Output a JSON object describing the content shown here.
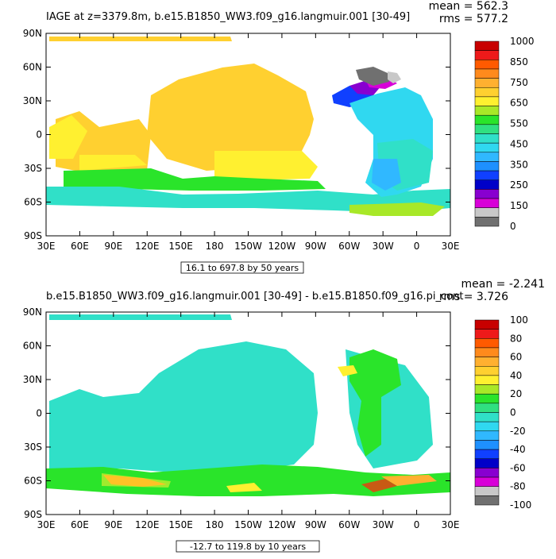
{
  "chart_data": [
    {
      "type": "heatmap",
      "title": "IAGE at z=3379.8m, b.e15.B1850_WW3.f09_g16.langmuir.001 [30-49]",
      "stats": {
        "mean": "mean = 562.3",
        "rms": "rms = 577.2"
      },
      "xticks": [
        "30E",
        "60E",
        "90E",
        "120E",
        "150E",
        "180",
        "150W",
        "120W",
        "90W",
        "60W",
        "30W",
        "0",
        "30E"
      ],
      "yticks": [
        "90N",
        "60N",
        "30N",
        "0",
        "30S",
        "60S",
        "90S"
      ],
      "xlim": [
        30,
        390
      ],
      "ylim": [
        -90,
        90
      ],
      "range_note": "16.1 to 697.8 by 50 years",
      "colorbar": {
        "labels": [
          "1000",
          "850",
          "750",
          "650",
          "550",
          "450",
          "350",
          "250",
          "150",
          "0"
        ],
        "colors": [
          "#c80000",
          "#ee1a1a",
          "#ff5a00",
          "#ff8a1c",
          "#ffb030",
          "#ffd030",
          "#fff030",
          "#a8e828",
          "#2ae42a",
          "#30e080",
          "#30e0c8",
          "#30d8f0",
          "#30b8ff",
          "#1e90ff",
          "#1040ff",
          "#0000c8",
          "#8800d0",
          "#d800d8",
          "#c8c8c8",
          "#707070"
        ]
      },
      "regions": [
        {
          "name": "pacific-central",
          "value": 650,
          "color": "#ffd030"
        },
        {
          "name": "pacific-south-band",
          "value": 700,
          "color": "#fff030"
        },
        {
          "name": "atlantic-north",
          "value": 450,
          "color": "#30d8f0"
        },
        {
          "name": "southern-ocean",
          "value": 450,
          "color": "#30e0c8"
        },
        {
          "name": "arctic-grey",
          "value": 50,
          "color": "#707070"
        }
      ]
    },
    {
      "type": "heatmap",
      "title": "b.e15.B1850_WW3.f09_g16.langmuir.001 [30-49] - b.e15.B1850.f09_g16.pi_cont",
      "stats": {
        "mean": "mean = -2.241",
        "rms": "rms = 3.726"
      },
      "xticks": [
        "30E",
        "60E",
        "90E",
        "120E",
        "150E",
        "180",
        "150W",
        "120W",
        "90W",
        "60W",
        "30W",
        "0",
        "30E"
      ],
      "yticks": [
        "90N",
        "60N",
        "30N",
        "0",
        "30S",
        "60S",
        "90S"
      ],
      "xlim": [
        30,
        390
      ],
      "ylim": [
        -90,
        90
      ],
      "range_note": "-12.7 to 119.8 by 10 years",
      "colorbar": {
        "labels": [
          "100",
          "80",
          "60",
          "40",
          "20",
          "0",
          "-20",
          "-40",
          "-60",
          "-80",
          "-100"
        ],
        "colors": [
          "#c80000",
          "#ee1a1a",
          "#ff5a00",
          "#ff8a1c",
          "#ffb030",
          "#ffd030",
          "#fff030",
          "#a8e828",
          "#2ae42a",
          "#30e080",
          "#30e0c8",
          "#30d8f0",
          "#30b8ff",
          "#1e90ff",
          "#1040ff",
          "#0000c8",
          "#8800d0",
          "#d800d8",
          "#c8c8c8",
          "#707070"
        ]
      },
      "regions": [
        {
          "name": "global-background",
          "value": -5,
          "color": "#30e0c8"
        },
        {
          "name": "atlantic-tongue",
          "value": 10,
          "color": "#2ae42a"
        },
        {
          "name": "southern-ocean-band",
          "value": 15,
          "color": "#2ae42a"
        },
        {
          "name": "weddell-anomaly",
          "value": 70,
          "color": "#ff8a1c"
        }
      ]
    }
  ]
}
